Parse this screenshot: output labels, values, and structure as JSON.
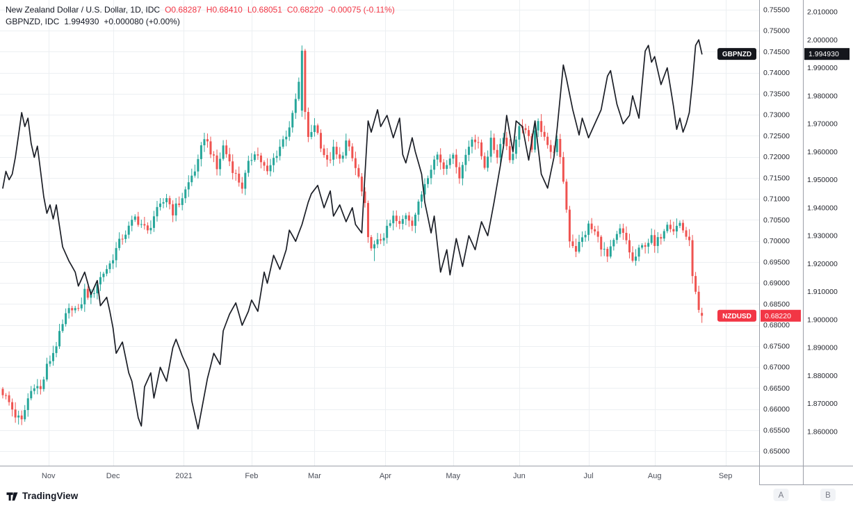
{
  "legend": {
    "row1": {
      "title": "New Zealand Dollar / U.S. Dollar, 1D, IDC",
      "o": "O0.68287",
      "h": "H0.68410",
      "l": "L0.68051",
      "c": "C0.68220",
      "change": "-0.00075 (-0.11%)"
    },
    "row2": {
      "title": "GBPNZD, IDC",
      "value": "1.994930",
      "change": "+0.000080 (+0.00%)"
    }
  },
  "watermark": {
    "text": "TradingView"
  },
  "price_labels": {
    "gbpnzd": {
      "symbol": "GBPNZD",
      "price": "1.994930",
      "value": 1.99493
    },
    "nzdusd": {
      "symbol": "NZDUSD",
      "price": "0.68220",
      "value": 0.6822
    }
  },
  "axes": {
    "nzd_ticks": [
      "0.75500",
      "0.75000",
      "0.74500",
      "0.74000",
      "0.73500",
      "0.73000",
      "0.72500",
      "0.72000",
      "0.71500",
      "0.71000",
      "0.70500",
      "0.70000",
      "0.69500",
      "0.69000",
      "0.68500",
      "0.68000",
      "0.67500",
      "0.67000",
      "0.66500",
      "0.66000",
      "0.65500",
      "0.65000"
    ],
    "gbp_ticks": [
      "2.010000",
      "2.000000",
      "1.990000",
      "1.980000",
      "1.970000",
      "1.960000",
      "1.950000",
      "1.940000",
      "1.930000",
      "1.920000",
      "1.910000",
      "1.900000",
      "1.890000",
      "1.880000",
      "1.870000",
      "1.860000"
    ],
    "scale_buttons": [
      {
        "label": "A"
      },
      {
        "label": "B"
      }
    ]
  },
  "colors": {
    "up": "#26a69a",
    "down": "#ef5350",
    "line": "#1b1e26",
    "neg": "#f23645",
    "grid": "#eceff2",
    "border": "#9b9fa8",
    "axis_text": "#24262e",
    "time_text": "#4a4e59",
    "badge_gbp": "#14161c",
    "badge_nzd": "#f23645",
    "button_bg": "#f1f3f6",
    "button_text": "#787b86"
  },
  "chart_data": {
    "type": "mixed",
    "title": "New Zealand Dollar / U.S. Dollar, 1D (candlesticks) with GBPNZD overlay (black line)",
    "timeframe": "1D",
    "bars": 223,
    "x_axis": {
      "months": [
        {
          "label": "Nov",
          "day": 14.5
        },
        {
          "label": "Dec",
          "day": 35
        },
        {
          "label": "2021",
          "day": 57.5
        },
        {
          "label": "Feb",
          "day": 79
        },
        {
          "label": "Mar",
          "day": 99
        },
        {
          "label": "Apr",
          "day": 121.5
        },
        {
          "label": "May",
          "day": 143
        },
        {
          "label": "Jun",
          "day": 164
        },
        {
          "label": "Jul",
          "day": 186
        },
        {
          "label": "Aug",
          "day": 207
        },
        {
          "label": "Sep",
          "day": 229.5
        }
      ]
    },
    "series": [
      {
        "name": "NZDUSD",
        "type": "candlestick",
        "scale": {
          "min": 0.65,
          "max": 0.755,
          "tick": 0.005
        },
        "last_ohlc": {
          "o": 0.68287,
          "h": 0.6841,
          "l": 0.68051,
          "c": 0.6822,
          "change": -0.00075,
          "change_pct": -0.11
        },
        "close_anchors": [
          [
            0,
            0.664
          ],
          [
            2,
            0.6615
          ],
          [
            4,
            0.6585
          ],
          [
            6,
            0.657
          ],
          [
            8,
            0.6625
          ],
          [
            10,
            0.666
          ],
          [
            12,
            0.6645
          ],
          [
            14,
            0.67
          ],
          [
            16,
            0.6735
          ],
          [
            18,
            0.6775
          ],
          [
            20,
            0.682
          ],
          [
            22,
            0.6845
          ],
          [
            24,
            0.683
          ],
          [
            26,
            0.688
          ],
          [
            28,
            0.6865
          ],
          [
            30,
            0.69
          ],
          [
            32,
            0.6925
          ],
          [
            34,
            0.6945
          ],
          [
            36,
            0.698
          ],
          [
            38,
            0.701
          ],
          [
            40,
            0.703
          ],
          [
            42,
            0.7055
          ],
          [
            44,
            0.704
          ],
          [
            46,
            0.702
          ],
          [
            48,
            0.706
          ],
          [
            50,
            0.708
          ],
          [
            52,
            0.7105
          ],
          [
            54,
            0.707
          ],
          [
            56,
            0.709
          ],
          [
            58,
            0.712
          ],
          [
            60,
            0.7155
          ],
          [
            62,
            0.7185
          ],
          [
            64,
            0.725
          ],
          [
            66,
            0.7215
          ],
          [
            68,
            0.717
          ],
          [
            70,
            0.7225
          ],
          [
            72,
            0.719
          ],
          [
            74,
            0.7155
          ],
          [
            76,
            0.713
          ],
          [
            78,
            0.718
          ],
          [
            80,
            0.7215
          ],
          [
            82,
            0.719
          ],
          [
            84,
            0.716
          ],
          [
            86,
            0.7195
          ],
          [
            88,
            0.7225
          ],
          [
            90,
            0.7255
          ],
          [
            92,
            0.7295
          ],
          [
            94,
            0.7375
          ],
          [
            95,
            0.7445
          ],
          [
            96,
            0.731
          ],
          [
            97,
            0.724
          ],
          [
            99,
            0.728
          ],
          [
            101,
            0.723
          ],
          [
            103,
            0.7185
          ],
          [
            105,
            0.7215
          ],
          [
            107,
            0.719
          ],
          [
            109,
            0.7235
          ],
          [
            111,
            0.7195
          ],
          [
            113,
            0.715
          ],
          [
            115,
            0.708
          ],
          [
            116,
            0.7
          ],
          [
            118,
            0.6985
          ],
          [
            120,
            0.7005
          ],
          [
            122,
            0.7025
          ],
          [
            124,
            0.7055
          ],
          [
            126,
            0.7035
          ],
          [
            128,
            0.7065
          ],
          [
            130,
            0.7045
          ],
          [
            132,
            0.7085
          ],
          [
            134,
            0.714
          ],
          [
            136,
            0.718
          ],
          [
            138,
            0.7205
          ],
          [
            140,
            0.7175
          ],
          [
            142,
            0.7205
          ],
          [
            144,
            0.7185
          ],
          [
            145,
            0.7155
          ],
          [
            147,
            0.7205
          ],
          [
            149,
            0.725
          ],
          [
            151,
            0.7225
          ],
          [
            153,
            0.718
          ],
          [
            155,
            0.7235
          ],
          [
            157,
            0.7205
          ],
          [
            159,
            0.7255
          ],
          [
            161,
            0.7195
          ],
          [
            163,
            0.7235
          ],
          [
            164,
            0.728
          ],
          [
            166,
            0.7255
          ],
          [
            168,
            0.7225
          ],
          [
            170,
            0.728
          ],
          [
            172,
            0.7255
          ],
          [
            174,
            0.7205
          ],
          [
            176,
            0.7235
          ],
          [
            178,
            0.7145
          ],
          [
            180,
            0.7005
          ],
          [
            182,
            0.698
          ],
          [
            184,
            0.7005
          ],
          [
            186,
            0.7035
          ],
          [
            188,
            0.702
          ],
          [
            190,
            0.699
          ],
          [
            192,
            0.696
          ],
          [
            194,
            0.6995
          ],
          [
            196,
            0.7025
          ],
          [
            198,
            0.7
          ],
          [
            200,
            0.695
          ],
          [
            202,
            0.6975
          ],
          [
            204,
            0.6995
          ],
          [
            206,
            0.7005
          ],
          [
            207,
            0.6985
          ],
          [
            209,
            0.7015
          ],
          [
            211,
            0.7048
          ],
          [
            213,
            0.7028
          ],
          [
            215,
            0.7042
          ],
          [
            217,
            0.7012
          ],
          [
            218,
            0.6992
          ],
          [
            219,
            0.6925
          ],
          [
            220,
            0.6872
          ],
          [
            221,
            0.683
          ],
          [
            222,
            0.6822
          ]
        ],
        "overrides": {
          "95": {
            "o": 0.731,
            "h": 0.7465,
            "l": 0.7295
          },
          "118": {
            "l": 0.6952
          },
          "222": {
            "o": 0.68287,
            "h": 0.6841,
            "l": 0.68051,
            "c": 0.6822
          }
        }
      },
      {
        "name": "GBPNZD",
        "type": "line",
        "scale": {
          "min": 1.86,
          "max": 2.01,
          "tick": 0.01
        },
        "last": 1.99493,
        "change": 8e-05,
        "change_pct": 0.0,
        "anchors": [
          [
            0,
            1.947
          ],
          [
            1,
            1.953
          ],
          [
            2,
            1.95
          ],
          [
            3,
            1.952
          ],
          [
            4,
            1.958
          ],
          [
            6,
            1.974
          ],
          [
            7,
            1.969
          ],
          [
            8,
            1.972
          ],
          [
            9,
            1.963
          ],
          [
            10,
            1.958
          ],
          [
            11,
            1.962
          ],
          [
            13,
            1.944
          ],
          [
            14,
            1.938
          ],
          [
            15,
            1.941
          ],
          [
            16,
            1.936
          ],
          [
            17,
            1.941
          ],
          [
            19,
            1.926
          ],
          [
            21,
            1.921
          ],
          [
            23,
            1.917
          ],
          [
            24,
            1.912
          ],
          [
            26,
            1.917
          ],
          [
            28,
            1.909
          ],
          [
            30,
            1.914
          ],
          [
            31,
            1.905
          ],
          [
            33,
            1.908
          ],
          [
            34,
            1.903
          ],
          [
            35,
            1.897
          ],
          [
            36,
            1.888
          ],
          [
            38,
            1.892
          ],
          [
            40,
            1.881
          ],
          [
            41,
            1.878
          ],
          [
            43,
            1.865
          ],
          [
            44,
            1.862
          ],
          [
            45,
            1.876
          ],
          [
            47,
            1.881
          ],
          [
            48,
            1.872
          ],
          [
            50,
            1.883
          ],
          [
            52,
            1.878
          ],
          [
            54,
            1.89
          ],
          [
            55,
            1.893
          ],
          [
            57,
            1.887
          ],
          [
            59,
            1.882
          ],
          [
            60,
            1.871
          ],
          [
            62,
            1.861
          ],
          [
            64,
            1.873
          ],
          [
            65,
            1.879
          ],
          [
            67,
            1.888
          ],
          [
            69,
            1.884
          ],
          [
            70,
            1.896
          ],
          [
            72,
            1.902
          ],
          [
            74,
            1.906
          ],
          [
            76,
            1.898
          ],
          [
            78,
            1.903
          ],
          [
            79,
            1.907
          ],
          [
            81,
            1.903
          ],
          [
            83,
            1.917
          ],
          [
            84,
            1.913
          ],
          [
            86,
            1.923
          ],
          [
            88,
            1.918
          ],
          [
            90,
            1.925
          ],
          [
            91,
            1.932
          ],
          [
            93,
            1.928
          ],
          [
            95,
            1.934
          ],
          [
            97,
            1.942
          ],
          [
            98,
            1.945
          ],
          [
            100,
            1.948
          ],
          [
            102,
            1.94
          ],
          [
            104,
            1.946
          ],
          [
            105,
            1.937
          ],
          [
            107,
            1.941
          ],
          [
            109,
            1.935
          ],
          [
            111,
            1.94
          ],
          [
            112,
            1.934
          ],
          [
            114,
            1.931
          ],
          [
            115,
            1.952
          ],
          [
            116,
            1.971
          ],
          [
            117,
            1.967
          ],
          [
            119,
            1.975
          ],
          [
            120,
            1.969
          ],
          [
            122,
            1.973
          ],
          [
            124,
            1.965
          ],
          [
            126,
            1.972
          ],
          [
            127,
            1.959
          ],
          [
            128,
            1.956
          ],
          [
            130,
            1.965
          ],
          [
            131,
            1.96
          ],
          [
            133,
            1.952
          ],
          [
            134,
            1.942
          ],
          [
            136,
            1.931
          ],
          [
            137,
            1.937
          ],
          [
            139,
            1.917
          ],
          [
            141,
            1.925
          ],
          [
            142,
            1.916
          ],
          [
            144,
            1.929
          ],
          [
            146,
            1.919
          ],
          [
            148,
            1.93
          ],
          [
            150,
            1.925
          ],
          [
            152,
            1.935
          ],
          [
            154,
            1.93
          ],
          [
            156,
            1.942
          ],
          [
            158,
            1.955
          ],
          [
            159,
            1.962
          ],
          [
            160,
            1.973
          ],
          [
            162,
            1.96
          ],
          [
            163,
            1.971
          ],
          [
            165,
            1.969
          ],
          [
            167,
            1.957
          ],
          [
            169,
            1.971
          ],
          [
            171,
            1.952
          ],
          [
            173,
            1.947
          ],
          [
            175,
            1.958
          ],
          [
            176,
            1.968
          ],
          [
            178,
            1.991
          ],
          [
            179,
            1.986
          ],
          [
            181,
            1.975
          ],
          [
            183,
            1.966
          ],
          [
            184,
            1.972
          ],
          [
            186,
            1.965
          ],
          [
            188,
            1.97
          ],
          [
            190,
            1.975
          ],
          [
            192,
            1.987
          ],
          [
            193,
            1.989
          ],
          [
            195,
            1.977
          ],
          [
            197,
            1.97
          ],
          [
            199,
            1.973
          ],
          [
            200,
            1.98
          ],
          [
            202,
            1.972
          ],
          [
            204,
            1.996
          ],
          [
            205,
            1.998
          ],
          [
            206,
            1.992
          ],
          [
            207,
            1.994
          ],
          [
            209,
            1.984
          ],
          [
            211,
            1.99
          ],
          [
            213,
            1.976
          ],
          [
            214,
            1.968
          ],
          [
            215,
            1.972
          ],
          [
            216,
            1.967
          ],
          [
            217,
            1.97
          ],
          [
            218,
            1.974
          ],
          [
            219,
            1.985
          ],
          [
            220,
            1.998
          ],
          [
            221,
            2.0
          ],
          [
            222,
            1.99493
          ]
        ]
      }
    ]
  }
}
